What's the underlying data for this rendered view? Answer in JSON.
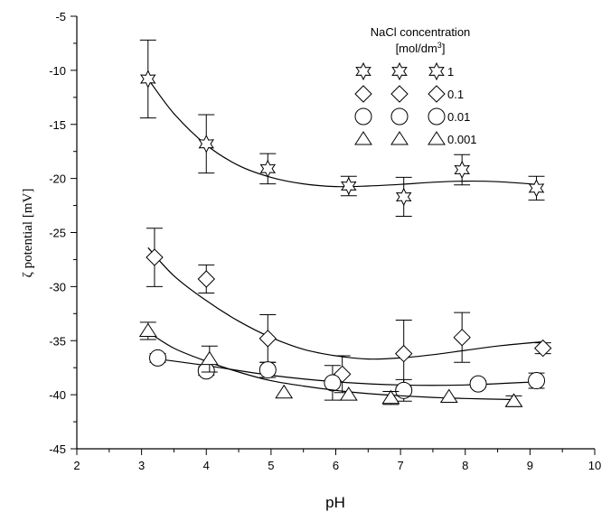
{
  "chart_data": {
    "type": "scatter",
    "title": "",
    "xlabel": "pH",
    "ylabel": "ζ potential [mV]",
    "xlim": [
      2,
      10
    ],
    "ylim": [
      -45,
      -5
    ],
    "x_ticks": [
      "2",
      "3",
      "4",
      "5",
      "6",
      "7",
      "8",
      "9",
      "10"
    ],
    "y_ticks": [
      "-5",
      "-10",
      "-15",
      "-20",
      "-25",
      "-30",
      "-35",
      "-40",
      "-45"
    ],
    "grid": false,
    "legend": {
      "title_line1": "NaCl concentration",
      "title_line2_main": "[mol/dm",
      "title_line2_sup": "3",
      "title_line2_end": "]",
      "placement": "top-right"
    },
    "series": [
      {
        "name": "1",
        "marker": "star",
        "points": [
          {
            "x": 3.1,
            "y": -10.8,
            "err": 3.6
          },
          {
            "x": 4.0,
            "y": -16.8,
            "err": 2.7
          },
          {
            "x": 4.95,
            "y": -19.1,
            "err": 1.4
          },
          {
            "x": 6.2,
            "y": -20.7,
            "err": 0.9
          },
          {
            "x": 7.05,
            "y": -21.7,
            "err": 1.8
          },
          {
            "x": 7.95,
            "y": -19.2,
            "err": 1.4
          },
          {
            "x": 9.1,
            "y": -20.9,
            "err": 1.1
          }
        ],
        "fit": [
          [
            3.1,
            -10.8
          ],
          [
            3.5,
            -14.0
          ],
          [
            4.0,
            -16.9
          ],
          [
            4.5,
            -18.8
          ],
          [
            5.0,
            -19.9
          ],
          [
            5.5,
            -20.5
          ],
          [
            6.0,
            -20.75
          ],
          [
            6.5,
            -20.7
          ],
          [
            7.0,
            -20.55
          ],
          [
            7.5,
            -20.35
          ],
          [
            8.0,
            -20.25
          ],
          [
            8.5,
            -20.3
          ],
          [
            9.1,
            -20.55
          ]
        ]
      },
      {
        "name": "0.1",
        "marker": "diamond",
        "points": [
          {
            "x": 3.2,
            "y": -27.3,
            "err": 2.7
          },
          {
            "x": 4.0,
            "y": -29.3,
            "err": 1.3
          },
          {
            "x": 4.95,
            "y": -34.8,
            "err": 2.2
          },
          {
            "x": 6.1,
            "y": -38.1,
            "err": 1.7
          },
          {
            "x": 7.05,
            "y": -36.2,
            "err": 3.1
          },
          {
            "x": 7.95,
            "y": -34.7,
            "err": 2.3
          },
          {
            "x": 9.2,
            "y": -35.7,
            "err": 0.5
          }
        ],
        "fit": [
          [
            3.1,
            -26.4
          ],
          [
            3.5,
            -29.0
          ],
          [
            4.0,
            -31.3
          ],
          [
            4.5,
            -33.2
          ],
          [
            5.0,
            -34.7
          ],
          [
            5.5,
            -35.8
          ],
          [
            6.0,
            -36.4
          ],
          [
            6.5,
            -36.7
          ],
          [
            7.0,
            -36.6
          ],
          [
            7.5,
            -36.3
          ],
          [
            8.0,
            -35.9
          ],
          [
            8.5,
            -35.5
          ],
          [
            9.2,
            -35.1
          ]
        ]
      },
      {
        "name": "0.01",
        "marker": "circle",
        "points": [
          {
            "x": 3.25,
            "y": -36.6,
            "err": 0.4
          },
          {
            "x": 4.0,
            "y": -37.8,
            "err": 0.4
          },
          {
            "x": 4.95,
            "y": -37.7,
            "err": 0.7
          },
          {
            "x": 5.95,
            "y": -38.9,
            "err": 1.6
          },
          {
            "x": 7.05,
            "y": -39.6,
            "err": 1.0
          },
          {
            "x": 8.2,
            "y": -39.0,
            "err": 0.3
          },
          {
            "x": 9.1,
            "y": -38.7,
            "err": 0.7
          }
        ],
        "fit": [
          [
            3.25,
            -36.7
          ],
          [
            4.0,
            -37.3
          ],
          [
            5.0,
            -38.2
          ],
          [
            6.0,
            -38.8
          ],
          [
            7.0,
            -39.1
          ],
          [
            8.0,
            -39.1
          ],
          [
            9.1,
            -38.8
          ]
        ]
      },
      {
        "name": "0.001",
        "marker": "triangle",
        "points": [
          {
            "x": 3.1,
            "y": -34.1,
            "err": 0.8
          },
          {
            "x": 4.05,
            "y": -36.7,
            "err": 1.2
          },
          {
            "x": 5.2,
            "y": -39.8,
            "err": 0.0
          },
          {
            "x": 6.2,
            "y": -40.0,
            "err": 0.0
          },
          {
            "x": 6.85,
            "y": -40.3,
            "err": 0.6
          },
          {
            "x": 7.75,
            "y": -40.2,
            "err": 0.0
          },
          {
            "x": 8.75,
            "y": -40.6,
            "err": 0.5
          }
        ],
        "fit": [
          [
            3.1,
            -34.2
          ],
          [
            3.5,
            -35.7
          ],
          [
            4.0,
            -36.9
          ],
          [
            4.5,
            -37.9
          ],
          [
            5.0,
            -38.7
          ],
          [
            5.5,
            -39.2
          ],
          [
            6.0,
            -39.6
          ],
          [
            6.5,
            -39.9
          ],
          [
            7.0,
            -40.1
          ],
          [
            7.5,
            -40.25
          ],
          [
            8.0,
            -40.35
          ],
          [
            8.75,
            -40.45
          ]
        ]
      }
    ]
  }
}
